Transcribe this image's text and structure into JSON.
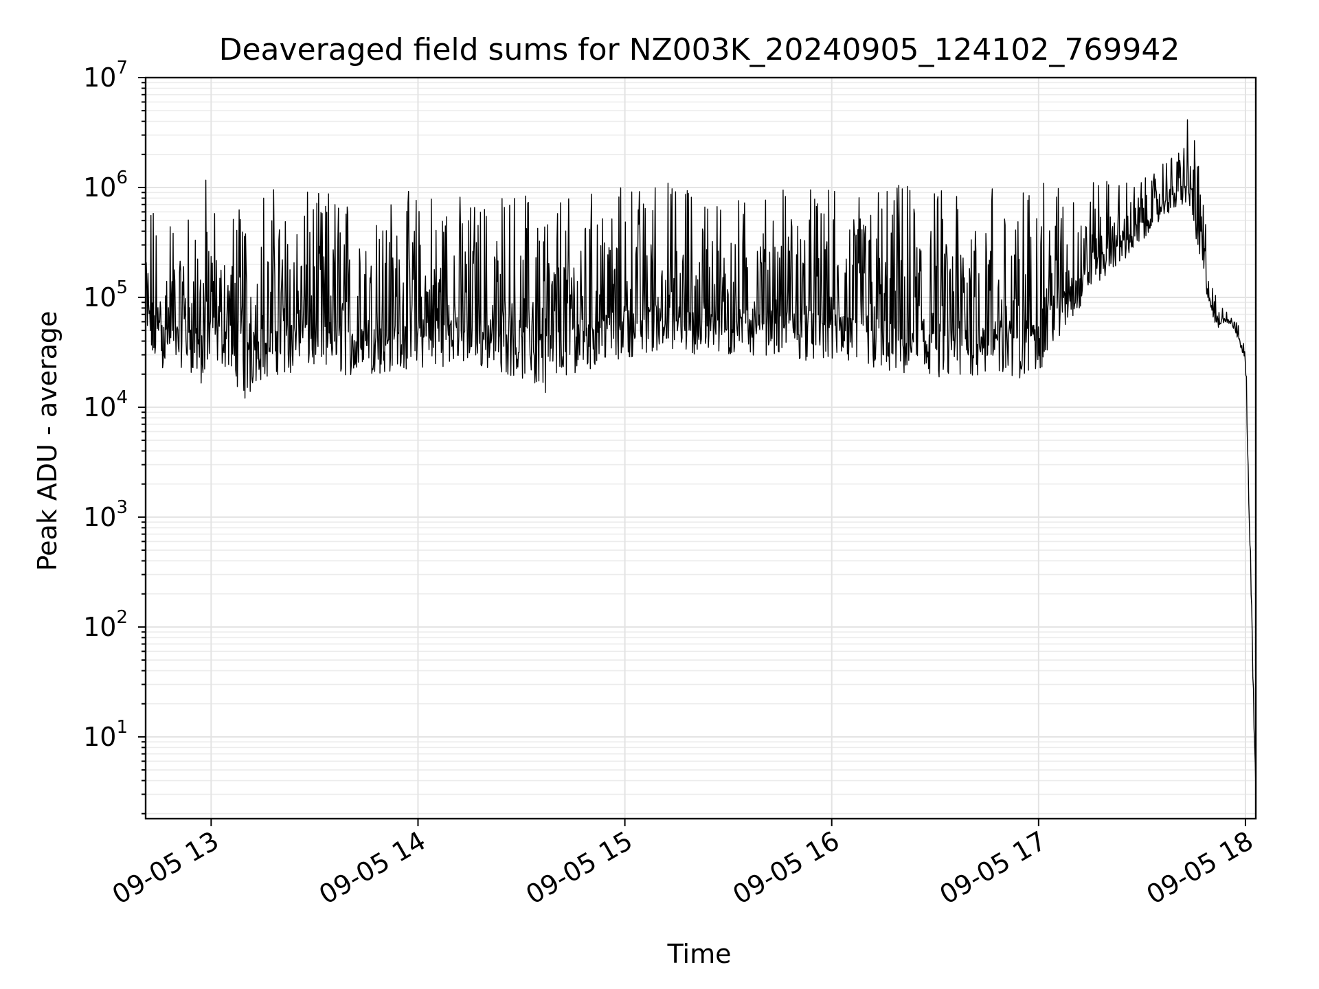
{
  "chart_data": {
    "type": "line",
    "title": "Deaveraged field sums for NZ003K_20240905_124102_769942",
    "xlabel": "Time",
    "ylabel": "Peak ADU - average",
    "yscale": "log",
    "ylim": [
      1.8,
      10000000
    ],
    "xlim": [
      "2024-09-05 12:41",
      "2024-09-05 18:03"
    ],
    "grid": true,
    "line_color": "#000000",
    "x_ticks": [
      {
        "value": "2024-09-05 13:00",
        "label": "09-05 13"
      },
      {
        "value": "2024-09-05 14:00",
        "label": "09-05 14"
      },
      {
        "value": "2024-09-05 15:00",
        "label": "09-05 15"
      },
      {
        "value": "2024-09-05 16:00",
        "label": "09-05 16"
      },
      {
        "value": "2024-09-05 17:00",
        "label": "09-05 17"
      },
      {
        "value": "2024-09-05 18:00",
        "label": "09-05 18"
      }
    ],
    "y_ticks": [
      {
        "value": 10,
        "base": "10",
        "exp": "1"
      },
      {
        "value": 100,
        "base": "10",
        "exp": "2"
      },
      {
        "value": 1000,
        "base": "10",
        "exp": "3"
      },
      {
        "value": 10000,
        "base": "10",
        "exp": "4"
      },
      {
        "value": 100000,
        "base": "10",
        "exp": "5"
      },
      {
        "value": 1000000,
        "base": "10",
        "exp": "6"
      },
      {
        "value": 10000000,
        "base": "10",
        "exp": "7"
      }
    ],
    "series": [
      {
        "x": [
          "2024-09-05 12:41",
          "2024-09-05 12:45",
          "2024-09-05 12:50",
          "2024-09-05 12:55",
          "2024-09-05 12:58",
          "2024-09-05 13:00",
          "2024-09-05 13:05",
          "2024-09-05 13:10",
          "2024-09-05 13:15",
          "2024-09-05 13:20",
          "2024-09-05 13:30",
          "2024-09-05 13:35",
          "2024-09-05 13:40",
          "2024-09-05 13:50",
          "2024-09-05 14:00",
          "2024-09-05 14:10",
          "2024-09-05 14:20",
          "2024-09-05 14:30",
          "2024-09-05 14:36",
          "2024-09-05 14:45",
          "2024-09-05 15:00",
          "2024-09-05 15:10",
          "2024-09-05 15:20",
          "2024-09-05 15:30",
          "2024-09-05 15:40",
          "2024-09-05 15:50",
          "2024-09-05 16:00",
          "2024-09-05 16:10",
          "2024-09-05 16:20",
          "2024-09-05 16:30",
          "2024-09-05 16:40",
          "2024-09-05 16:50",
          "2024-09-05 16:55",
          "2024-09-05 17:00",
          "2024-09-05 17:05",
          "2024-09-05 17:10",
          "2024-09-05 17:15",
          "2024-09-05 17:20",
          "2024-09-05 17:25",
          "2024-09-05 17:30",
          "2024-09-05 17:35",
          "2024-09-05 17:40",
          "2024-09-05 17:42",
          "2024-09-05 17:44",
          "2024-09-05 17:46",
          "2024-09-05 17:48",
          "2024-09-05 17:50",
          "2024-09-05 17:52",
          "2024-09-05 17:54",
          "2024-09-05 17:56",
          "2024-09-05 17:58",
          "2024-09-05 18:00",
          "2024-09-05 18:01",
          "2024-09-05 18:02",
          "2024-09-05 18:03"
        ],
        "y_low": [
          25000,
          22000,
          24000,
          20000,
          12000,
          25000,
          22000,
          11000,
          18000,
          20000,
          22000,
          20000,
          19000,
          20000,
          22000,
          24000,
          22000,
          18000,
          13000,
          20000,
          28000,
          32000,
          30000,
          28000,
          30000,
          27000,
          25000,
          22000,
          18000,
          16000,
          18000,
          20000,
          18000,
          20000,
          40000,
          60000,
          120000,
          160000,
          220000,
          320000,
          500000,
          650000,
          700000,
          600000,
          300000,
          120000,
          70000,
          50000,
          60000,
          55000,
          40000,
          25000,
          1000,
          30,
          3.5
        ],
        "y_high": [
          650000,
          700000,
          700000,
          750000,
          1500000,
          800000,
          750000,
          900000,
          1100000,
          950000,
          900000,
          1000000,
          800000,
          900000,
          1000000,
          900000,
          800000,
          1000000,
          1200000,
          1000000,
          1100000,
          1200000,
          1100000,
          900000,
          1000000,
          1050000,
          950000,
          1000000,
          1100000,
          1000000,
          1100000,
          1100000,
          1000000,
          1100000,
          1100000,
          1150000,
          1200000,
          1200000,
          1100000,
          1300000,
          1500000,
          2500000,
          3200000,
          5000000,
          2200000,
          800000,
          150000,
          90000,
          85000,
          75000,
          55000,
          35000,
          8000,
          200,
          3.5
        ]
      }
    ]
  }
}
